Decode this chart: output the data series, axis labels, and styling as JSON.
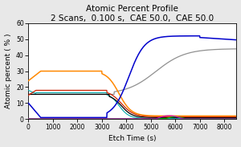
{
  "title": "Atomic Percent Profile",
  "subtitle": "2 Scans,  0.100 s,  CAE 50.0,  CAE 50.0",
  "xlabel": "Etch Time (s)",
  "ylabel": "Atomic percent ( % )",
  "xlim": [
    0,
    8500
  ],
  "ylim": [
    0,
    60
  ],
  "xticks": [
    0,
    1000,
    2000,
    3000,
    4000,
    5000,
    6000,
    7000,
    8000
  ],
  "yticks": [
    0,
    10,
    20,
    30,
    40,
    50,
    60
  ],
  "bg_color": "#e8e8e8",
  "plot_bg": "#ffffff",
  "title_fontsize": 7.5,
  "axis_label_fontsize": 6.5,
  "tick_fontsize": 5.5
}
